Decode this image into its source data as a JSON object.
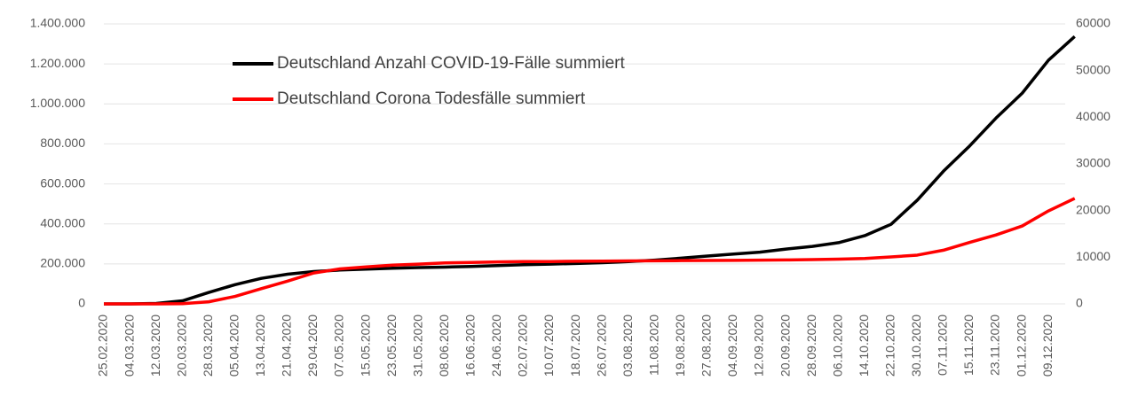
{
  "chart_data": {
    "type": "line",
    "categories": [
      "25.02.2020",
      "04.03.2020",
      "12.03.2020",
      "20.03.2020",
      "28.03.2020",
      "05.04.2020",
      "13.04.2020",
      "21.04.2020",
      "29.04.2020",
      "07.05.2020",
      "15.05.2020",
      "23.05.2020",
      "31.05.2020",
      "08.06.2020",
      "16.06.2020",
      "24.06.2020",
      "02.07.2020",
      "10.07.2020",
      "18.07.2020",
      "26.07.2020",
      "03.08.2020",
      "11.08.2020",
      "19.08.2020",
      "27.08.2020",
      "04.09.2020",
      "12.09.2020",
      "20.09.2020",
      "28.09.2020",
      "06.10.2020",
      "14.10.2020",
      "22.10.2020",
      "30.10.2020",
      "07.11.2020",
      "15.11.2020",
      "23.11.2020",
      "01.12.2020",
      "09.12.2020",
      null
    ],
    "series": [
      {
        "name": "Deutschland Anzahl COVID-19-Fälle summiert",
        "color": "#000000",
        "values": [
          16,
          262,
          2369,
          15320,
          57298,
          96092,
          127584,
          148291,
          161703,
          169218,
          174098,
          178570,
          181815,
          184121,
          187184,
          191449,
          196096,
          198963,
          202345,
          206242,
          211281,
          218519,
          228621,
          239010,
          248997,
          258480,
          274158,
          287421,
          306086,
          341223,
          397922,
          518753,
          663885,
          790503,
          929133,
          1053869,
          1218524,
          1337078
        ]
      },
      {
        "name": "Deutschland Corona Todesfälle summiert",
        "color": "#ff0000",
        "axis": "y2",
        "values": [
          0,
          0,
          5,
          44,
          455,
          1607,
          3254,
          4879,
          6623,
          7510,
          7935,
          8302,
          8522,
          8776,
          8883,
          8985,
          9064,
          9078,
          9135,
          9158,
          9204,
          9236,
          9271,
          9298,
          9338,
          9370,
          9423,
          9488,
          9589,
          9734,
          10056,
          10452,
          11509,
          13175,
          14771,
          16694,
          19932,
          22600
        ]
      }
    ],
    "ylim": [
      0,
      1400000
    ],
    "yticks": [
      0,
      {
        "value": 200000,
        "label": "200.000"
      },
      {
        "value": 400000,
        "label": "400.000"
      },
      {
        "value": 600000,
        "label": "600.000"
      },
      {
        "value": 800000,
        "label": "800.000"
      },
      {
        "value": 1000000,
        "label": "1.000.000"
      },
      {
        "value": 1200000,
        "label": "1.200.000"
      },
      {
        "value": 1400000,
        "label": "1.400.000"
      }
    ],
    "y2lim": [
      0,
      60000
    ],
    "y2ticks": [
      0,
      10000,
      20000,
      30000,
      40000,
      50000,
      60000
    ],
    "grid": true,
    "legend": "top-left"
  }
}
